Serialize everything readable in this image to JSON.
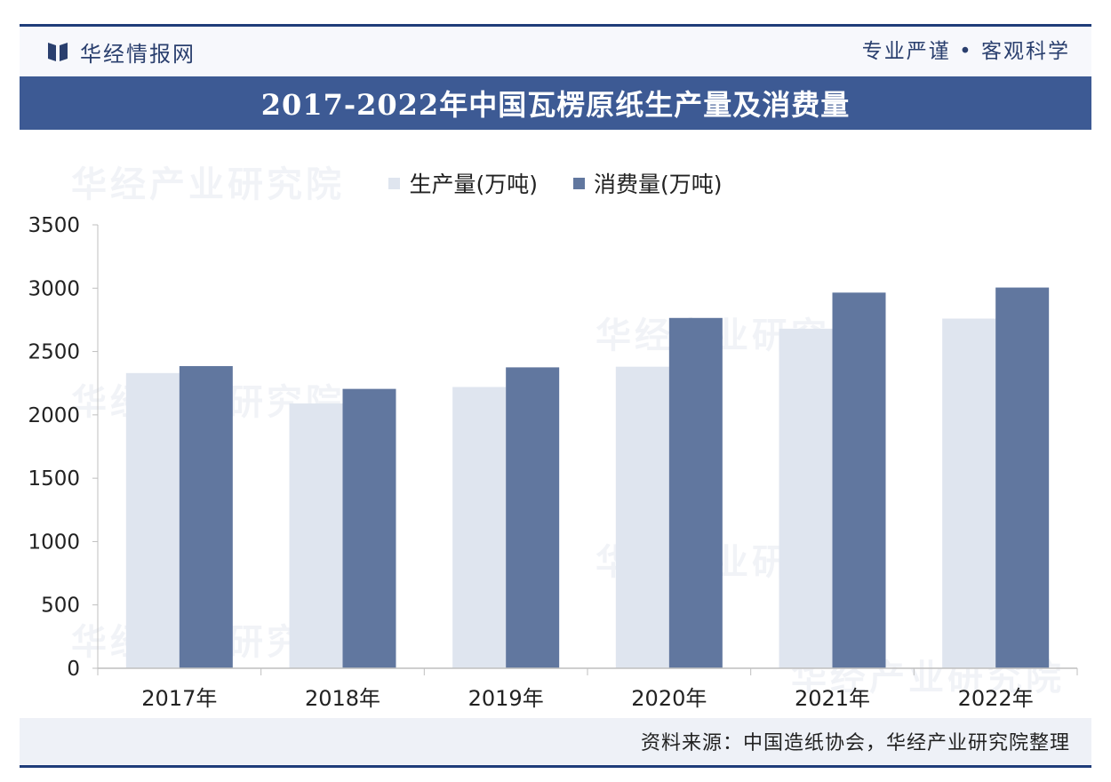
{
  "header": {
    "brand": "华经情报网",
    "slogan": "专业严谨 • 客观科学"
  },
  "title": "2017-2022年中国瓦楞原纸生产量及消费量",
  "source": "资料来源：中国造纸协会，华经产业研究院整理",
  "watermark": "华经产业研究院",
  "colors": {
    "production": "#dfe5ef",
    "consumption": "#61779f",
    "title_bar": "#3d5a94"
  },
  "chart_data": {
    "type": "bar",
    "categories": [
      "2017年",
      "2018年",
      "2019年",
      "2020年",
      "2021年",
      "2022年"
    ],
    "series": [
      {
        "name": "生产量(万吨)",
        "values": [
          2330,
          2090,
          2220,
          2380,
          2680,
          2760
        ]
      },
      {
        "name": "消费量(万吨)",
        "values": [
          2385,
          2205,
          2375,
          2765,
          2965,
          3005
        ]
      }
    ],
    "yticks": [
      0,
      500,
      1000,
      1500,
      2000,
      2500,
      3000,
      3500
    ],
    "ylim": [
      0,
      3500
    ],
    "legend": "top-center",
    "grid": false
  }
}
